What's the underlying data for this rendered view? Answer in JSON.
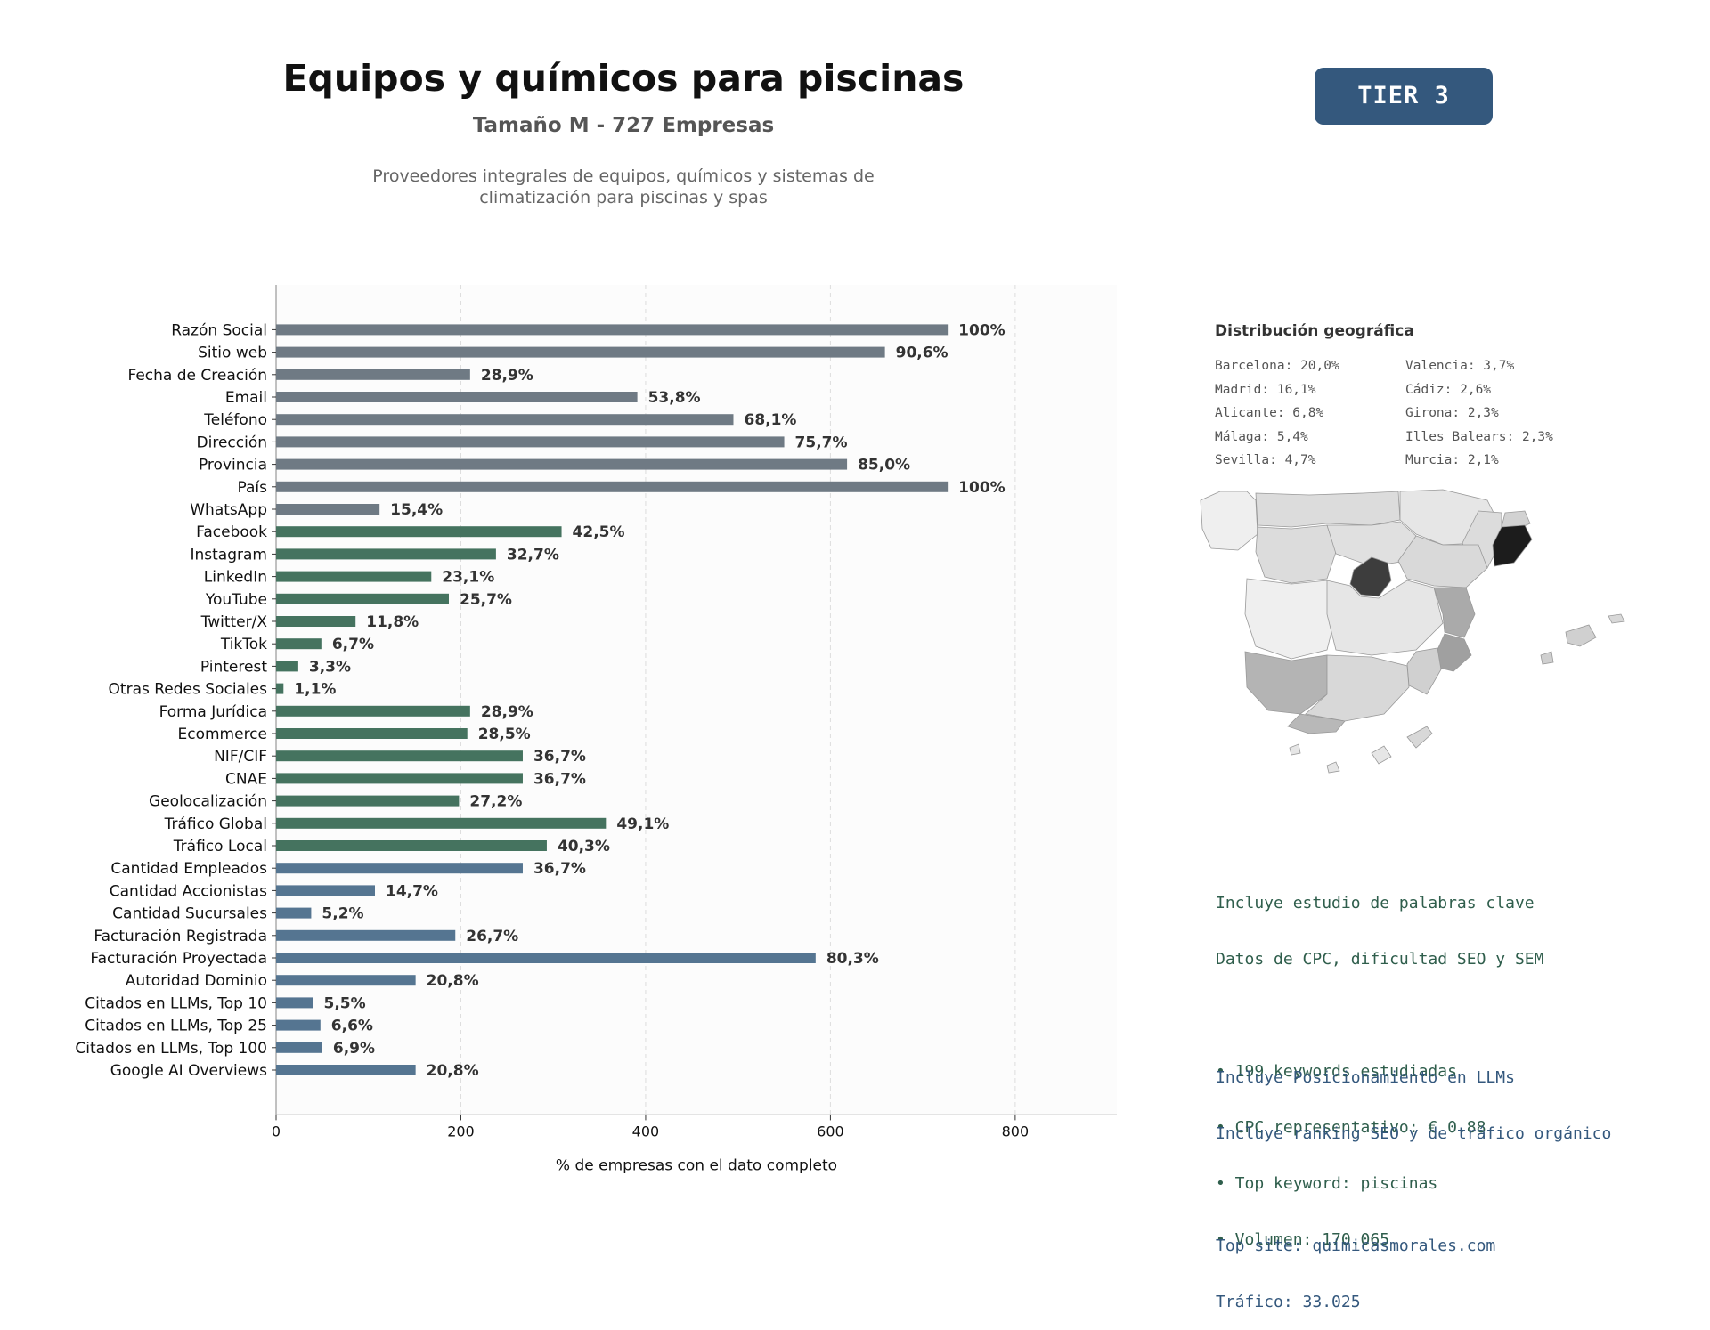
{
  "header": {
    "title": "Equipos y químicos para piscinas",
    "subtitle": "Tamaño M - 727 Empresas",
    "description_lines": [
      "Proveedores integrales de equipos, químicos y sistemas de",
      "climatización para piscinas y spas"
    ],
    "tier_label": "TIER 3"
  },
  "colors": {
    "gray": "#6f7a84",
    "green": "#45735f",
    "blue": "#557591",
    "tier_bg": "#34587d",
    "kw_text": "#2f5e4c",
    "llm_text": "#34587d"
  },
  "chart_data": {
    "type": "bar",
    "orientation": "horizontal",
    "xlabel": "% de empresas con el dato completo",
    "xlim": [
      0,
      910
    ],
    "xticks": [
      0,
      200,
      400,
      600,
      800
    ],
    "grid": "x-dashed",
    "categories": [
      "Razón Social",
      "Sitio web",
      "Fecha de Creación",
      "Email",
      "Teléfono",
      "Dirección",
      "Provincia",
      "País",
      "WhatsApp",
      "Facebook",
      "Instagram",
      "LinkedIn",
      "YouTube",
      "Twitter/X",
      "TikTok",
      "Pinterest",
      "Otras Redes Sociales",
      "Forma Jurídica",
      "Ecommerce",
      "NIF/CIF",
      "CNAE",
      "Geolocalización",
      "Tráfico Global",
      "Tráfico Local",
      "Cantidad Empleados",
      "Cantidad Accionistas",
      "Cantidad Sucursales",
      "Facturación Registrada",
      "Facturación Proyectada",
      "Autoridad Dominio",
      "Citados en LLMs, Top 10",
      "Citados en LLMs, Top 25",
      "Citados en LLMs, Top 100",
      "Google AI Overviews"
    ],
    "values": [
      727,
      659,
      210,
      391,
      495,
      550,
      618,
      727,
      112,
      309,
      238,
      168,
      187,
      86,
      49,
      24,
      8,
      210,
      207,
      267,
      267,
      198,
      357,
      293,
      267,
      107,
      38,
      194,
      584,
      151,
      40,
      48,
      50,
      151
    ],
    "labels": [
      "100%",
      "90,6%",
      "28,9%",
      "53,8%",
      "68,1%",
      "75,7%",
      "85,0%",
      "100%",
      "15,4%",
      "42,5%",
      "32,7%",
      "23,1%",
      "25,7%",
      "11,8%",
      "6,7%",
      "3,3%",
      "1,1%",
      "28,9%",
      "28,5%",
      "36,7%",
      "36,7%",
      "27,2%",
      "49,1%",
      "40,3%",
      "36,7%",
      "14,7%",
      "5,2%",
      "26,7%",
      "80,3%",
      "20,8%",
      "5,5%",
      "6,6%",
      "6,9%",
      "20,8%"
    ],
    "groups": [
      "gray",
      "gray",
      "gray",
      "gray",
      "gray",
      "gray",
      "gray",
      "gray",
      "gray",
      "green",
      "green",
      "green",
      "green",
      "green",
      "green",
      "green",
      "green",
      "green",
      "green",
      "green",
      "green",
      "green",
      "green",
      "green",
      "blue",
      "blue",
      "blue",
      "blue",
      "blue",
      "blue",
      "blue",
      "blue",
      "blue",
      "blue"
    ]
  },
  "geo": {
    "title": "Distribución geográfica",
    "left_column": [
      "Barcelona: 20,0%",
      "Madrid: 16,1%",
      "Alicante: 6,8%",
      "Málaga: 5,4%",
      "Sevilla: 4,7%"
    ],
    "right_column": [
      "Valencia: 3,7%",
      "Cádiz: 2,6%",
      "Girona: 2,3%",
      "Illes Balears: 2,3%",
      "Murcia: 2,1%"
    ],
    "map_shades": {
      "barcelona": "#1c1c1c",
      "madrid": "#3d3d3d",
      "alicante_valencia": "#aaaaaa",
      "andalucia_south": "#b4b4b4",
      "default": "#dcdcdc",
      "light": "#efefef"
    }
  },
  "keywords": {
    "lines": [
      "Incluye estudio de palabras clave",
      "Datos de CPC, dificultad SEO y SEM",
      "",
      "• 199 keywords estudiadas",
      "• CPC representativo: € 0.88",
      "• Top keyword: piscinas",
      "• Volumen: 170.065"
    ]
  },
  "llm": {
    "lines": [
      "Incluye Posicionamiento en LLMs",
      "Incluye ranking SEO y de tráfico orgánico",
      "",
      "Top site: quimicasmorales.com",
      "Tráfico: 33.025"
    ]
  }
}
